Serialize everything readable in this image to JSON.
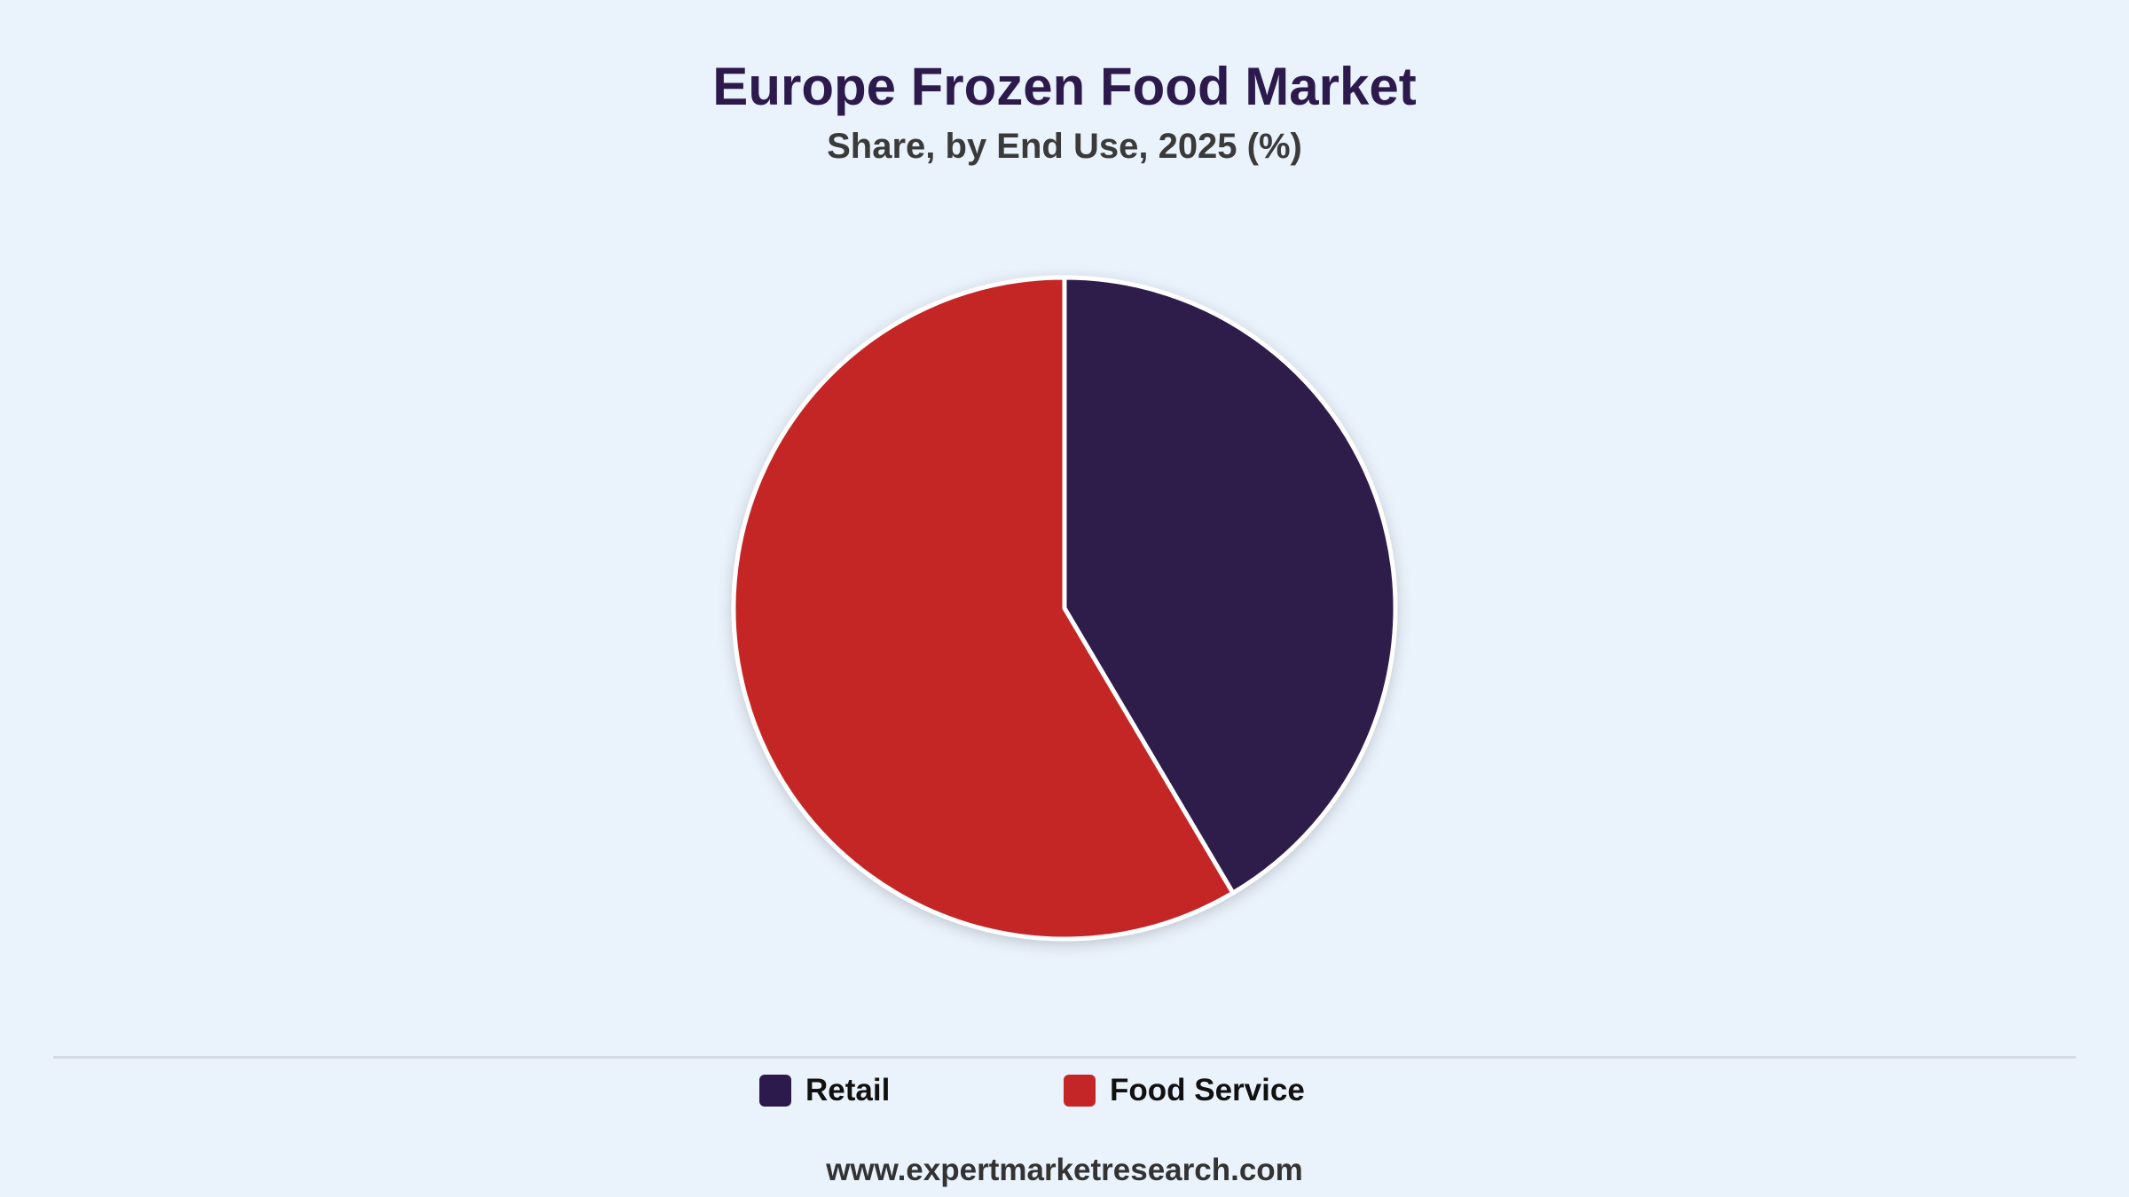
{
  "chart_data": {
    "type": "pie",
    "title": "Europe Frozen Food Market",
    "subtitle": "Share, by End Use, 2025 (%)",
    "categories": [
      "Retail",
      "Food Service"
    ],
    "values": [
      41.5,
      58.5
    ],
    "colors": [
      "#2D1A4C",
      "#C42526"
    ],
    "legend_position": "bottom"
  },
  "footer": {
    "source": "www.expertmarketresearch.com"
  }
}
